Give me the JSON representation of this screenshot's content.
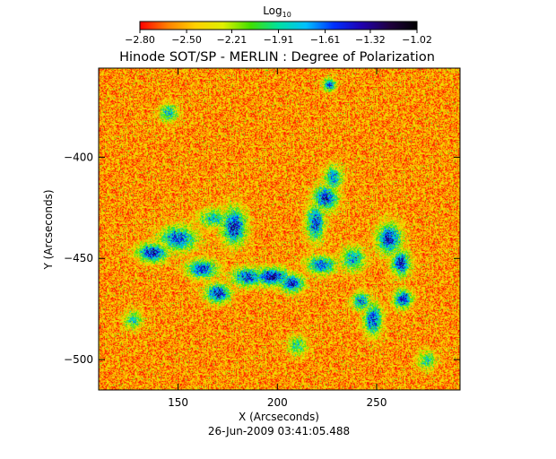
{
  "chart_data": {
    "type": "heatmap",
    "title": "Hinode SOT/SP - MERLIN : Degree of Polarization",
    "xlabel": "X (Arcseconds)",
    "ylabel": "Y (Arcseconds)",
    "timestamp": "26-Jun-2009 03:41:05.488",
    "xlim": [
      110,
      292
    ],
    "ylim": [
      -515,
      -356
    ],
    "x_ticks": [
      {
        "value": 150,
        "label": "150"
      },
      {
        "value": 200,
        "label": "200"
      },
      {
        "value": 250,
        "label": "250"
      }
    ],
    "y_ticks": [
      {
        "value": -400,
        "label": "−400"
      },
      {
        "value": -450,
        "label": "−450"
      },
      {
        "value": -500,
        "label": "−500"
      }
    ],
    "colorbar": {
      "label": "Log",
      "label_subscript": "10",
      "min": -2.8,
      "max": -1.02,
      "ticks": [
        {
          "value": -2.8,
          "label": "−2.80"
        },
        {
          "value": -2.5,
          "label": "−2.50"
        },
        {
          "value": -2.21,
          "label": "−2.21"
        },
        {
          "value": -1.91,
          "label": "−1.91"
        },
        {
          "value": -1.61,
          "label": "−1.61"
        },
        {
          "value": -1.32,
          "label": "−1.32"
        },
        {
          "value": -1.02,
          "label": "−1.02"
        }
      ],
      "colors": [
        "#ff0000",
        "#ff8000",
        "#ffd000",
        "#e0f000",
        "#40e000",
        "#00e0a0",
        "#00c0ff",
        "#0030ff",
        "#2000b0",
        "#200040",
        "#000000"
      ]
    },
    "background_value": -2.55,
    "features": [
      {
        "x": 137,
        "y": -447,
        "sx": 5,
        "sy": 3,
        "peak": -1.4
      },
      {
        "x": 150,
        "y": -440,
        "sx": 6,
        "sy": 4,
        "peak": -1.55
      },
      {
        "x": 162,
        "y": -455,
        "sx": 5,
        "sy": 3,
        "peak": -1.5
      },
      {
        "x": 170,
        "y": -467,
        "sx": 4,
        "sy": 3,
        "peak": -1.4
      },
      {
        "x": 178,
        "y": -434,
        "sx": 4,
        "sy": 6,
        "peak": -1.45
      },
      {
        "x": 168,
        "y": -430,
        "sx": 5,
        "sy": 3,
        "peak": -1.8
      },
      {
        "x": 185,
        "y": -459,
        "sx": 5,
        "sy": 3,
        "peak": -1.5
      },
      {
        "x": 197,
        "y": -459,
        "sx": 6,
        "sy": 3,
        "peak": -1.4
      },
      {
        "x": 207,
        "y": -462,
        "sx": 4,
        "sy": 3,
        "peak": -1.45
      },
      {
        "x": 222,
        "y": -453,
        "sx": 5,
        "sy": 3,
        "peak": -1.6
      },
      {
        "x": 219,
        "y": -432,
        "sx": 3,
        "sy": 6,
        "peak": -1.55
      },
      {
        "x": 224,
        "y": -420,
        "sx": 4,
        "sy": 4,
        "peak": -1.45
      },
      {
        "x": 228,
        "y": -410,
        "sx": 3,
        "sy": 4,
        "peak": -1.7
      },
      {
        "x": 238,
        "y": -450,
        "sx": 4,
        "sy": 4,
        "peak": -1.75
      },
      {
        "x": 256,
        "y": -440,
        "sx": 4,
        "sy": 5,
        "peak": -1.45
      },
      {
        "x": 262,
        "y": -452,
        "sx": 3,
        "sy": 4,
        "peak": -1.4
      },
      {
        "x": 263,
        "y": -470,
        "sx": 3,
        "sy": 3,
        "peak": -1.45
      },
      {
        "x": 248,
        "y": -480,
        "sx": 3,
        "sy": 5,
        "peak": -1.5
      },
      {
        "x": 242,
        "y": -471,
        "sx": 3,
        "sy": 3,
        "peak": -1.7
      },
      {
        "x": 226,
        "y": -364,
        "sx": 2,
        "sy": 2,
        "peak": -1.5
      },
      {
        "x": 145,
        "y": -378,
        "sx": 3,
        "sy": 3,
        "peak": -1.85
      },
      {
        "x": 127,
        "y": -480,
        "sx": 3,
        "sy": 3,
        "peak": -1.9
      },
      {
        "x": 210,
        "y": -493,
        "sx": 3,
        "sy": 3,
        "peak": -1.9
      },
      {
        "x": 275,
        "y": -500,
        "sx": 3,
        "sy": 3,
        "peak": -1.95
      }
    ]
  }
}
